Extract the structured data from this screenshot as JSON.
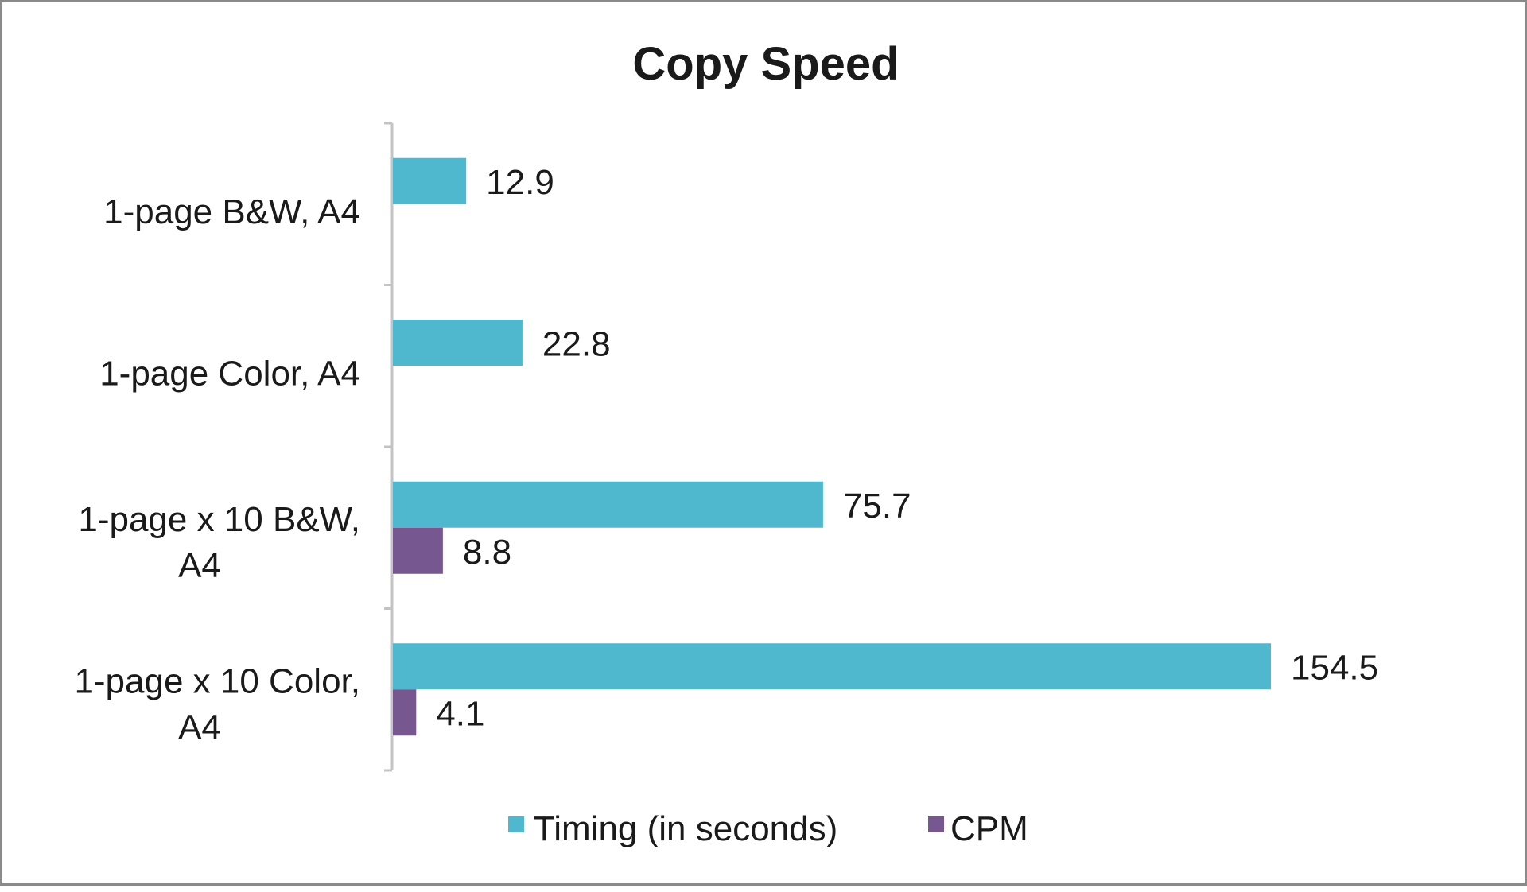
{
  "chart_data": {
    "type": "bar",
    "orientation": "horizontal",
    "title": "Copy Speed",
    "xlabel": "",
    "ylabel": "",
    "categories": [
      [
        "1-page B&W, A4"
      ],
      [
        "1-page Color, A4"
      ],
      [
        "1-page x 10 B&W,",
        "A4"
      ],
      [
        "1-page x 10 Color,",
        "A4"
      ]
    ],
    "series": [
      {
        "name": "Timing (in seconds)",
        "color": "#4fb8cf",
        "values": [
          12.9,
          22.8,
          75.7,
          154.5
        ]
      },
      {
        "name": "CPM",
        "color": "#77578f",
        "values": [
          null,
          null,
          8.8,
          4.1
        ]
      }
    ],
    "xlim": [
      0,
      170
    ],
    "grid": false,
    "x_axis_visible": false,
    "data_labels": true,
    "legend_position": "bottom"
  }
}
